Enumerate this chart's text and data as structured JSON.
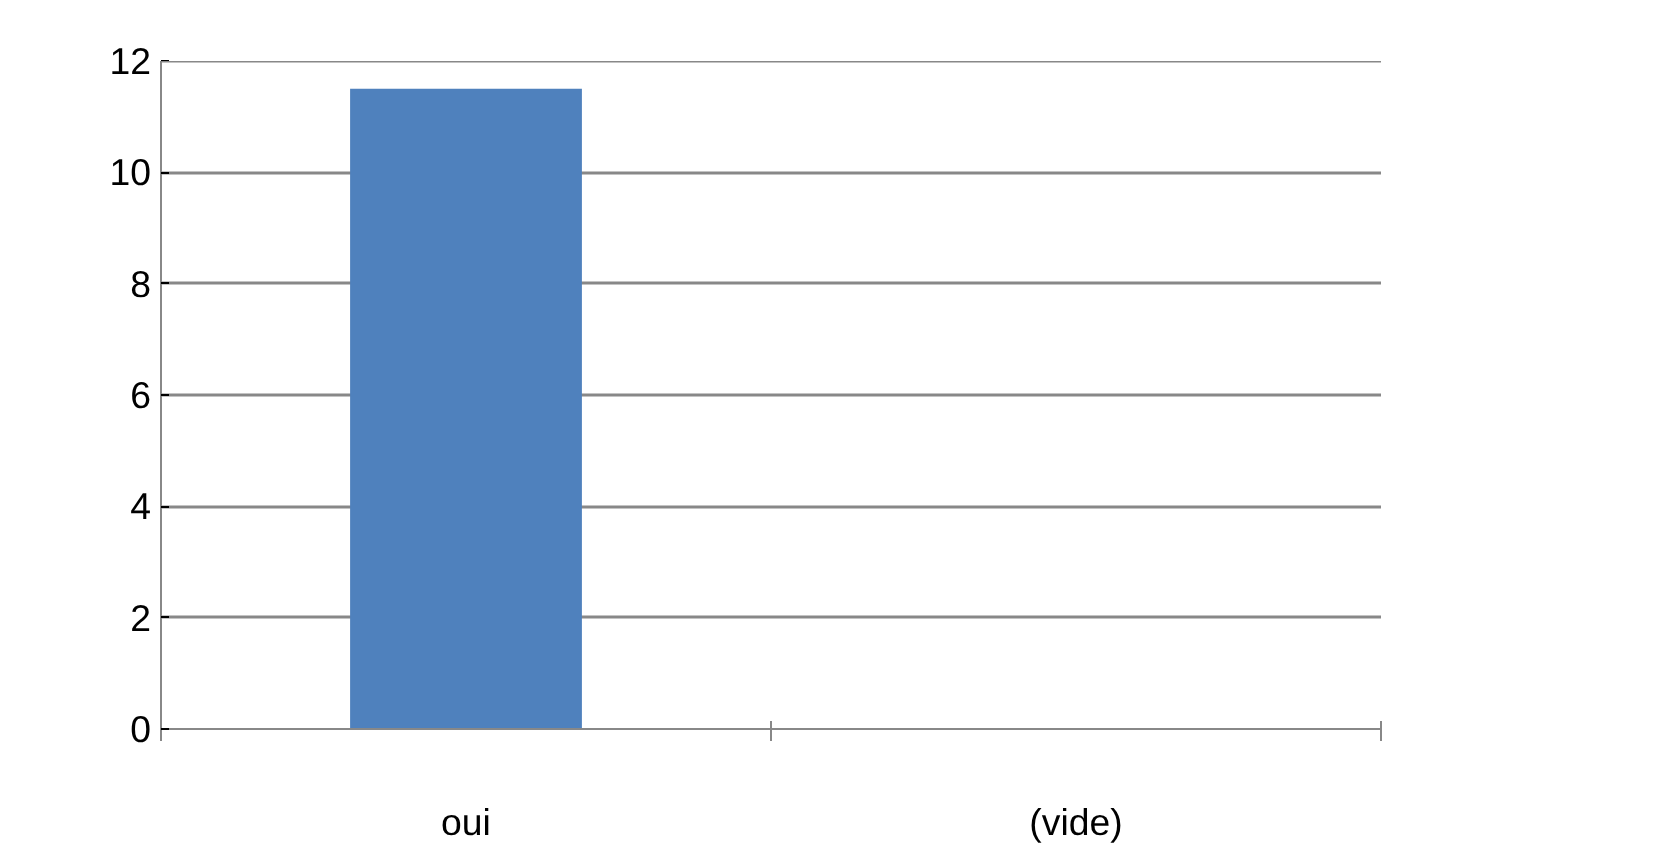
{
  "chart_data": {
    "type": "bar",
    "categories": [
      "oui",
      "(vide)"
    ],
    "values": [
      11.5,
      null
    ],
    "color": "#4f81bd",
    "ylim": [
      0,
      12
    ],
    "yticks": [
      0,
      2,
      4,
      6,
      8,
      10,
      12
    ],
    "grid": "y"
  }
}
